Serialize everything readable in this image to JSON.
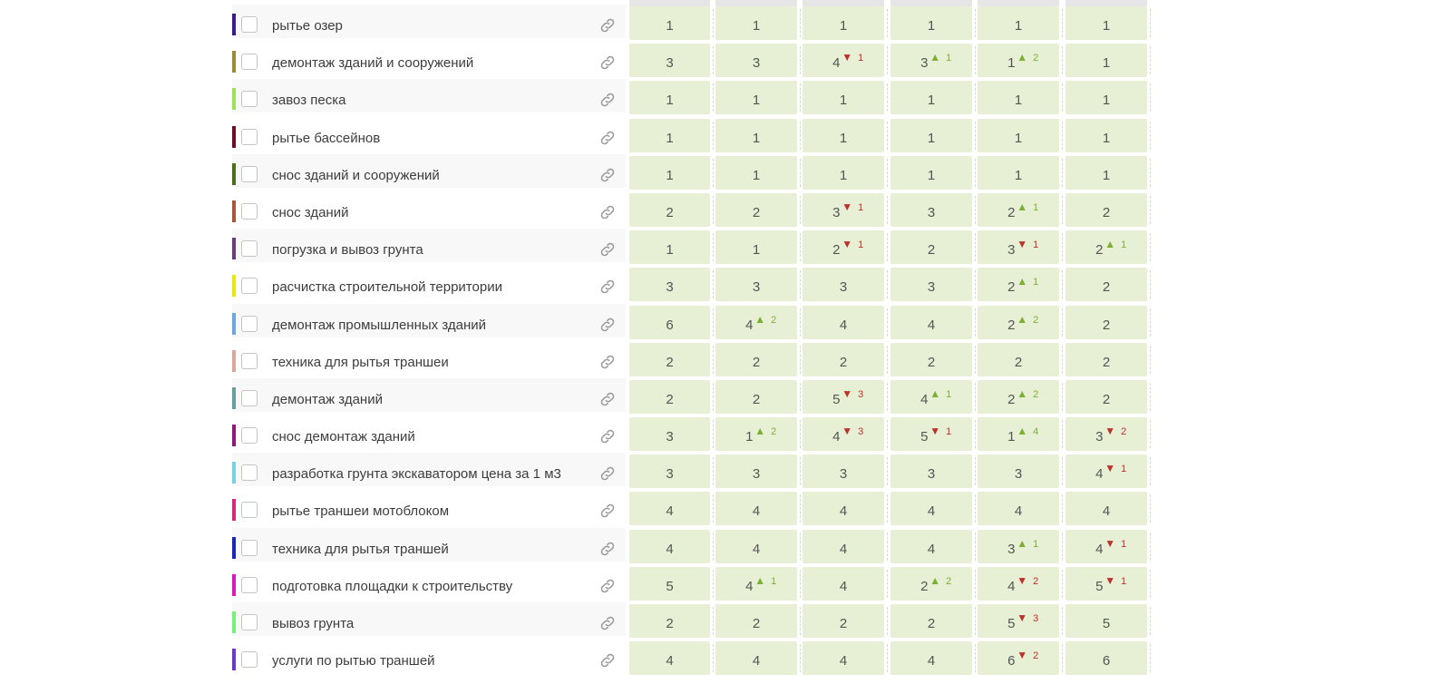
{
  "rows": [
    {
      "keyword": "рытье озер",
      "color": "#3a1c8c",
      "cells": [
        {
          "v": "1"
        },
        {
          "v": "1"
        },
        {
          "v": "1"
        },
        {
          "v": "1"
        },
        {
          "v": "1"
        },
        {
          "v": "1"
        }
      ]
    },
    {
      "keyword": "демонтаж зданий и сооружений",
      "color": "#9c8a3c",
      "cells": [
        {
          "v": "3"
        },
        {
          "v": "3"
        },
        {
          "v": "4",
          "dir": "down",
          "d": "1"
        },
        {
          "v": "3",
          "dir": "up",
          "d": "1"
        },
        {
          "v": "1",
          "dir": "up",
          "d": "2"
        },
        {
          "v": "1"
        }
      ]
    },
    {
      "keyword": "завоз песка",
      "color": "#9ee05a",
      "cells": [
        {
          "v": "1"
        },
        {
          "v": "1"
        },
        {
          "v": "1"
        },
        {
          "v": "1"
        },
        {
          "v": "1"
        },
        {
          "v": "1"
        }
      ]
    },
    {
      "keyword": "рытье бассейнов",
      "color": "#6e0f2a",
      "cells": [
        {
          "v": "1"
        },
        {
          "v": "1"
        },
        {
          "v": "1"
        },
        {
          "v": "1"
        },
        {
          "v": "1"
        },
        {
          "v": "1"
        }
      ]
    },
    {
      "keyword": "снос зданий и сооружений",
      "color": "#4c6e1a",
      "cells": [
        {
          "v": "1"
        },
        {
          "v": "1"
        },
        {
          "v": "1"
        },
        {
          "v": "1"
        },
        {
          "v": "1"
        },
        {
          "v": "1"
        }
      ]
    },
    {
      "keyword": "снос зданий",
      "color": "#a8573a",
      "cells": [
        {
          "v": "2"
        },
        {
          "v": "2"
        },
        {
          "v": "3",
          "dir": "down",
          "d": "1"
        },
        {
          "v": "3"
        },
        {
          "v": "2",
          "dir": "up",
          "d": "1"
        },
        {
          "v": "2"
        }
      ]
    },
    {
      "keyword": "погрузка и вывоз грунта",
      "color": "#6b3e78",
      "cells": [
        {
          "v": "1"
        },
        {
          "v": "1"
        },
        {
          "v": "2",
          "dir": "down",
          "d": "1"
        },
        {
          "v": "2"
        },
        {
          "v": "3",
          "dir": "down",
          "d": "1"
        },
        {
          "v": "2",
          "dir": "up",
          "d": "1"
        }
      ]
    },
    {
      "keyword": "расчистка строительной территории",
      "color": "#e6e61a",
      "cells": [
        {
          "v": "3"
        },
        {
          "v": "3"
        },
        {
          "v": "3"
        },
        {
          "v": "3"
        },
        {
          "v": "2",
          "dir": "up",
          "d": "1"
        },
        {
          "v": "2"
        }
      ]
    },
    {
      "keyword": "демонтаж промышленных зданий",
      "color": "#6ea8d8",
      "cells": [
        {
          "v": "6"
        },
        {
          "v": "4",
          "dir": "up",
          "d": "2"
        },
        {
          "v": "4"
        },
        {
          "v": "4"
        },
        {
          "v": "2",
          "dir": "up",
          "d": "2"
        },
        {
          "v": "2"
        }
      ]
    },
    {
      "keyword": "техника для рытья траншеи",
      "color": "#d8a89c",
      "cells": [
        {
          "v": "2"
        },
        {
          "v": "2"
        },
        {
          "v": "2"
        },
        {
          "v": "2"
        },
        {
          "v": "2"
        },
        {
          "v": "2"
        }
      ]
    },
    {
      "keyword": "демонтаж зданий",
      "color": "#6a9e98",
      "cells": [
        {
          "v": "2"
        },
        {
          "v": "2"
        },
        {
          "v": "5",
          "dir": "down",
          "d": "3"
        },
        {
          "v": "4",
          "dir": "up",
          "d": "1"
        },
        {
          "v": "2",
          "dir": "up",
          "d": "2"
        },
        {
          "v": "2"
        }
      ]
    },
    {
      "keyword": "снос демонтаж зданий",
      "color": "#8e1a78",
      "cells": [
        {
          "v": "3"
        },
        {
          "v": "1",
          "dir": "up",
          "d": "2"
        },
        {
          "v": "4",
          "dir": "down",
          "d": "3"
        },
        {
          "v": "5",
          "dir": "down",
          "d": "1"
        },
        {
          "v": "1",
          "dir": "up",
          "d": "4"
        },
        {
          "v": "3",
          "dir": "down",
          "d": "2"
        }
      ]
    },
    {
      "keyword": "разработка грунта экскаватором цена за 1 м3",
      "color": "#7ad0e0",
      "cells": [
        {
          "v": "3"
        },
        {
          "v": "3"
        },
        {
          "v": "3"
        },
        {
          "v": "3"
        },
        {
          "v": "3"
        },
        {
          "v": "4",
          "dir": "down",
          "d": "1"
        }
      ]
    },
    {
      "keyword": "рытье траншеи мотоблоком",
      "color": "#d8287a",
      "cells": [
        {
          "v": "4"
        },
        {
          "v": "4"
        },
        {
          "v": "4"
        },
        {
          "v": "4"
        },
        {
          "v": "4"
        },
        {
          "v": "4"
        }
      ]
    },
    {
      "keyword": "техника для рытья траншей",
      "color": "#1a2ab8",
      "cells": [
        {
          "v": "4"
        },
        {
          "v": "4"
        },
        {
          "v": "4"
        },
        {
          "v": "4"
        },
        {
          "v": "3",
          "dir": "up",
          "d": "1"
        },
        {
          "v": "4",
          "dir": "down",
          "d": "1"
        }
      ]
    },
    {
      "keyword": "подготовка площадки к строительству",
      "color": "#d81ab8",
      "cells": [
        {
          "v": "5"
        },
        {
          "v": "4",
          "dir": "up",
          "d": "1"
        },
        {
          "v": "4"
        },
        {
          "v": "2",
          "dir": "up",
          "d": "2"
        },
        {
          "v": "4",
          "dir": "down",
          "d": "2"
        },
        {
          "v": "5",
          "dir": "down",
          "d": "1"
        }
      ]
    },
    {
      "keyword": "вывоз грунта",
      "color": "#7af07a",
      "cells": [
        {
          "v": "2"
        },
        {
          "v": "2"
        },
        {
          "v": "2"
        },
        {
          "v": "2"
        },
        {
          "v": "5",
          "dir": "down",
          "d": "3"
        },
        {
          "v": "5"
        }
      ]
    },
    {
      "keyword": "услуги по рытью траншей",
      "color": "#6a3ac8",
      "cells": [
        {
          "v": "4"
        },
        {
          "v": "4"
        },
        {
          "v": "4"
        },
        {
          "v": "4"
        },
        {
          "v": "6",
          "dir": "down",
          "d": "2"
        },
        {
          "v": "6"
        }
      ]
    }
  ],
  "icons": {
    "link": "link-icon",
    "up": "triangle-up-icon",
    "down": "triangle-down-icon"
  },
  "colors": {
    "cell_bg": "#e7efd5",
    "up": "#7ab034",
    "down": "#c0302a"
  }
}
